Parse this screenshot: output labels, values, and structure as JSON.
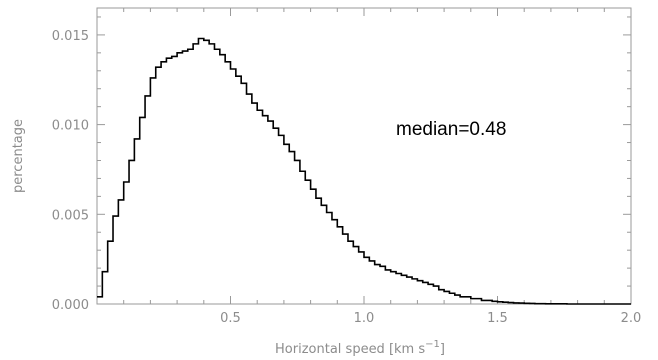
{
  "chart_data": {
    "type": "line",
    "step": true,
    "title": "",
    "xlabel": "Horizontal speed [km s",
    "xlabel_sup": "−1",
    "xlabel_suffix": "]",
    "ylabel": "percentage",
    "xlim": [
      0.0,
      2.0
    ],
    "ylim": [
      0.0,
      0.0165
    ],
    "x_ticks": [
      0.5,
      1.0,
      1.5,
      2.0
    ],
    "x_tick_labels": [
      "0.5",
      "1.0",
      "1.5",
      "2.0"
    ],
    "y_ticks": [
      0.0,
      0.005,
      0.01,
      0.015
    ],
    "y_tick_labels": [
      "0.000",
      "0.005",
      "0.010",
      "0.015"
    ],
    "grid": false,
    "annotation": "median=0.48",
    "series": [
      {
        "x": [
          0.0,
          0.02,
          0.04,
          0.06,
          0.08,
          0.1,
          0.12,
          0.14,
          0.16,
          0.18,
          0.2,
          0.22,
          0.24,
          0.26,
          0.28,
          0.3,
          0.32,
          0.34,
          0.36,
          0.38,
          0.4,
          0.42,
          0.44,
          0.46,
          0.48,
          0.5,
          0.52,
          0.54,
          0.56,
          0.58,
          0.6,
          0.62,
          0.64,
          0.66,
          0.68,
          0.7,
          0.72,
          0.74,
          0.76,
          0.78,
          0.8,
          0.82,
          0.84,
          0.86,
          0.88,
          0.9,
          0.92,
          0.94,
          0.96,
          0.98,
          1.0,
          1.02,
          1.04,
          1.06,
          1.08,
          1.1,
          1.12,
          1.14,
          1.16,
          1.18,
          1.2,
          1.22,
          1.24,
          1.26,
          1.28,
          1.3,
          1.32,
          1.34,
          1.36,
          1.38,
          1.4,
          1.42,
          1.44,
          1.46,
          1.48,
          1.5,
          1.52,
          1.54,
          1.56,
          1.58,
          1.6,
          1.62,
          1.64,
          1.66,
          1.68,
          1.7,
          1.72,
          1.74,
          1.76,
          1.78,
          1.8,
          1.82,
          1.84,
          1.86,
          1.88,
          1.9,
          1.92,
          1.94,
          1.96,
          1.98
        ],
        "values": [
          0.0004,
          0.0018,
          0.0035,
          0.0049,
          0.0058,
          0.0068,
          0.008,
          0.0092,
          0.0104,
          0.0116,
          0.0126,
          0.0132,
          0.0135,
          0.0137,
          0.0138,
          0.014,
          0.0141,
          0.0142,
          0.0145,
          0.0148,
          0.0147,
          0.0145,
          0.0142,
          0.0139,
          0.0135,
          0.0131,
          0.0127,
          0.0123,
          0.0117,
          0.0112,
          0.0108,
          0.0105,
          0.0102,
          0.0098,
          0.0094,
          0.0089,
          0.0085,
          0.008,
          0.0074,
          0.0069,
          0.0064,
          0.0059,
          0.0055,
          0.0051,
          0.0047,
          0.0043,
          0.0039,
          0.0035,
          0.0032,
          0.0029,
          0.0026,
          0.0024,
          0.0022,
          0.0021,
          0.0019,
          0.0018,
          0.0017,
          0.0016,
          0.0015,
          0.0014,
          0.0013,
          0.0012,
          0.0011,
          0.001,
          0.0008,
          0.0007,
          0.0006,
          0.0005,
          0.0004,
          0.0004,
          0.0003,
          0.0003,
          0.0002,
          0.0002,
          0.00015,
          0.00012,
          0.0001,
          8e-05,
          6e-05,
          5e-05,
          4e-05,
          3e-05,
          2e-05,
          2e-05,
          1e-05,
          1e-05,
          1e-05,
          1e-05,
          0.0,
          0.0,
          0.0,
          0.0,
          0.0,
          0.0,
          0.0,
          0.0,
          0.0,
          0.0,
          0.0,
          0.0
        ]
      }
    ],
    "colors": {
      "line": "#000000",
      "axis": "#9a9a9a",
      "label": "#8c8c8c"
    }
  }
}
